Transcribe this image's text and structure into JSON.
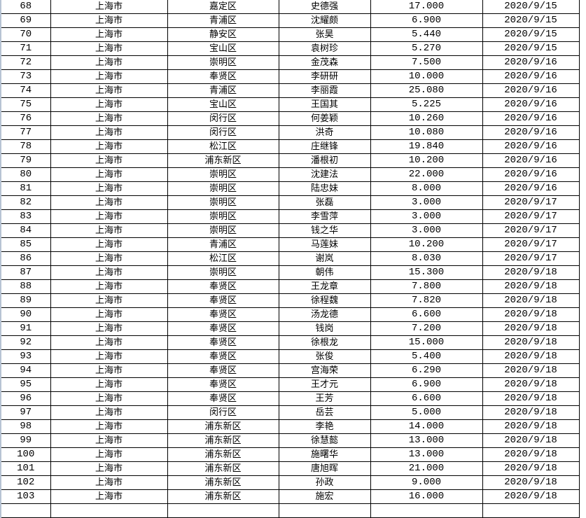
{
  "rows": [
    {
      "no": "68",
      "city": "上海市",
      "district": "嘉定区",
      "name": "史德强",
      "value": "17.000",
      "date": "2020/9/15"
    },
    {
      "no": "69",
      "city": "上海市",
      "district": "青浦区",
      "name": "沈耀颇",
      "value": "6.900",
      "date": "2020/9/15"
    },
    {
      "no": "70",
      "city": "上海市",
      "district": "静安区",
      "name": "张昊",
      "value": "5.440",
      "date": "2020/9/15"
    },
    {
      "no": "71",
      "city": "上海市",
      "district": "宝山区",
      "name": "袁树珍",
      "value": "5.270",
      "date": "2020/9/15"
    },
    {
      "no": "72",
      "city": "上海市",
      "district": "崇明区",
      "name": "金茂森",
      "value": "7.500",
      "date": "2020/9/16"
    },
    {
      "no": "73",
      "city": "上海市",
      "district": "奉贤区",
      "name": "李研研",
      "value": "10.000",
      "date": "2020/9/16"
    },
    {
      "no": "74",
      "city": "上海市",
      "district": "青浦区",
      "name": "李丽霞",
      "value": "25.080",
      "date": "2020/9/16"
    },
    {
      "no": "75",
      "city": "上海市",
      "district": "宝山区",
      "name": "王国其",
      "value": "5.225",
      "date": "2020/9/16"
    },
    {
      "no": "76",
      "city": "上海市",
      "district": "闵行区",
      "name": "何姜颖",
      "value": "10.260",
      "date": "2020/9/16"
    },
    {
      "no": "77",
      "city": "上海市",
      "district": "闵行区",
      "name": "洪奇",
      "value": "10.080",
      "date": "2020/9/16"
    },
    {
      "no": "78",
      "city": "上海市",
      "district": "松江区",
      "name": "庄继锋",
      "value": "19.840",
      "date": "2020/9/16"
    },
    {
      "no": "79",
      "city": "上海市",
      "district": "浦东新区",
      "name": "潘根初",
      "value": "10.200",
      "date": "2020/9/16"
    },
    {
      "no": "80",
      "city": "上海市",
      "district": "崇明区",
      "name": "沈建法",
      "value": "22.000",
      "date": "2020/9/16"
    },
    {
      "no": "81",
      "city": "上海市",
      "district": "崇明区",
      "name": "陆忠妹",
      "value": "8.000",
      "date": "2020/9/16"
    },
    {
      "no": "82",
      "city": "上海市",
      "district": "崇明区",
      "name": "张磊",
      "value": "3.000",
      "date": "2020/9/17"
    },
    {
      "no": "83",
      "city": "上海市",
      "district": "崇明区",
      "name": "李雪萍",
      "value": "3.000",
      "date": "2020/9/17"
    },
    {
      "no": "84",
      "city": "上海市",
      "district": "崇明区",
      "name": "钱之华",
      "value": "3.000",
      "date": "2020/9/17"
    },
    {
      "no": "85",
      "city": "上海市",
      "district": "青浦区",
      "name": "马莲妹",
      "value": "10.200",
      "date": "2020/9/17"
    },
    {
      "no": "86",
      "city": "上海市",
      "district": "松江区",
      "name": "谢岚",
      "value": "8.030",
      "date": "2020/9/17"
    },
    {
      "no": "87",
      "city": "上海市",
      "district": "崇明区",
      "name": "朝伟",
      "value": "15.300",
      "date": "2020/9/18"
    },
    {
      "no": "88",
      "city": "上海市",
      "district": "奉贤区",
      "name": "王龙章",
      "value": "7.800",
      "date": "2020/9/18"
    },
    {
      "no": "89",
      "city": "上海市",
      "district": "奉贤区",
      "name": "徐程魏",
      "value": "7.820",
      "date": "2020/9/18"
    },
    {
      "no": "90",
      "city": "上海市",
      "district": "奉贤区",
      "name": "汤龙德",
      "value": "6.600",
      "date": "2020/9/18"
    },
    {
      "no": "91",
      "city": "上海市",
      "district": "奉贤区",
      "name": "钱岗",
      "value": "7.200",
      "date": "2020/9/18"
    },
    {
      "no": "92",
      "city": "上海市",
      "district": "奉贤区",
      "name": "徐根龙",
      "value": "15.000",
      "date": "2020/9/18"
    },
    {
      "no": "93",
      "city": "上海市",
      "district": "奉贤区",
      "name": "张俊",
      "value": "5.400",
      "date": "2020/9/18"
    },
    {
      "no": "94",
      "city": "上海市",
      "district": "奉贤区",
      "name": "宫海荣",
      "value": "6.290",
      "date": "2020/9/18"
    },
    {
      "no": "95",
      "city": "上海市",
      "district": "奉贤区",
      "name": "王才元",
      "value": "6.900",
      "date": "2020/9/18"
    },
    {
      "no": "96",
      "city": "上海市",
      "district": "奉贤区",
      "name": "王芳",
      "value": "6.600",
      "date": "2020/9/18"
    },
    {
      "no": "97",
      "city": "上海市",
      "district": "闵行区",
      "name": "岳芸",
      "value": "5.000",
      "date": "2020/9/18"
    },
    {
      "no": "98",
      "city": "上海市",
      "district": "浦东新区",
      "name": "李艳",
      "value": "14.000",
      "date": "2020/9/18"
    },
    {
      "no": "99",
      "city": "上海市",
      "district": "浦东新区",
      "name": "徐慧懿",
      "value": "13.000",
      "date": "2020/9/18"
    },
    {
      "no": "100",
      "city": "上海市",
      "district": "浦东新区",
      "name": "施曙华",
      "value": "13.000",
      "date": "2020/9/18"
    },
    {
      "no": "101",
      "city": "上海市",
      "district": "浦东新区",
      "name": "唐旭晖",
      "value": "21.000",
      "date": "2020/9/18"
    },
    {
      "no": "102",
      "city": "上海市",
      "district": "浦东新区",
      "name": "孙政",
      "value": "9.000",
      "date": "2020/9/18"
    },
    {
      "no": "103",
      "city": "上海市",
      "district": "浦东新区",
      "name": "施宏",
      "value": "16.000",
      "date": "2020/9/18"
    }
  ]
}
